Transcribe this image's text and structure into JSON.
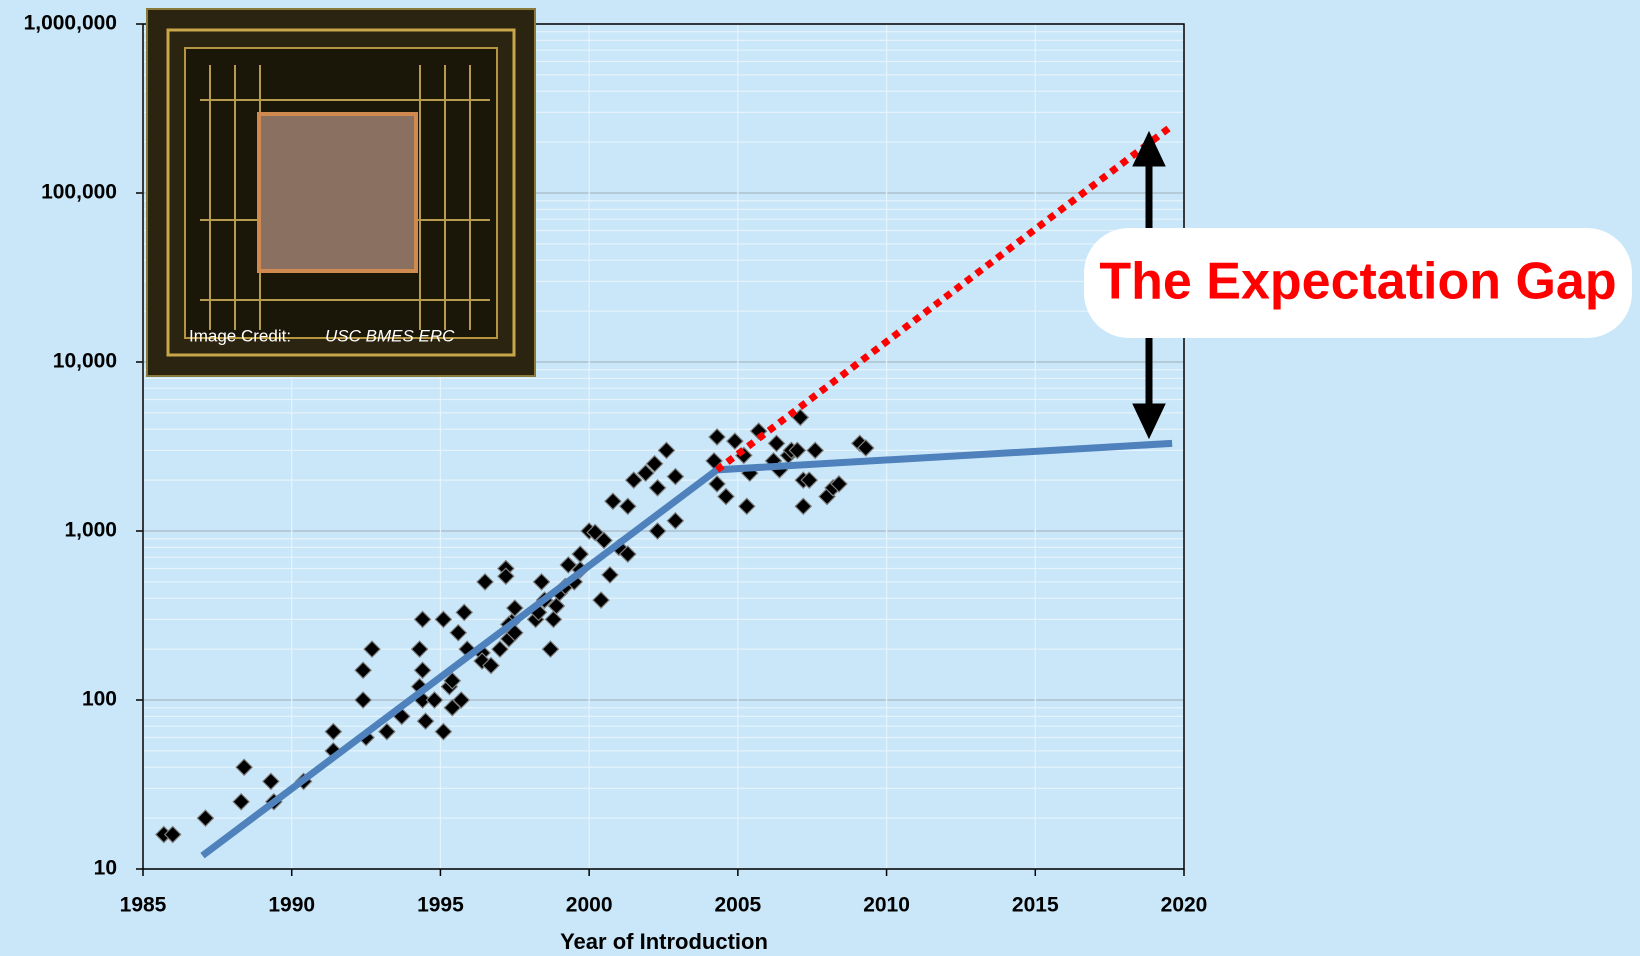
{
  "chart_data": {
    "type": "scatter",
    "x_label": "Year of Introduction",
    "annotation": "The Expectation Gap",
    "image_credit": {
      "label": "Image Credit:",
      "source": "USC BMES ERC"
    },
    "x": [
      1985.7,
      1986,
      1987.1,
      1988.3,
      1988.4,
      1989.3,
      1989.4,
      1990.4,
      1991.4,
      1991.4,
      1992.4,
      1992.4,
      1992.7,
      1992.5,
      1993.2,
      1993.7,
      1994.4,
      1994.3,
      1994.4,
      1994.4,
      1994.5,
      1994.3,
      1994.8,
      1995.1,
      1995.1,
      1995.3,
      1995.4,
      1995.4,
      1995.7,
      1995.6,
      1995.8,
      1995.9,
      1996.5,
      1996.4,
      1996.4,
      1996.7,
      1997,
      1997.2,
      1997.2,
      1997.3,
      1997.4,
      1997.5,
      1997.3,
      1997.5,
      1998.2,
      1998.3,
      1998.4,
      1998.5,
      1998.7,
      1998.8,
      1999,
      1998.9,
      1999.2,
      1999.3,
      1999.5,
      1999.7,
      1999.7,
      2000,
      2000.2,
      2000.4,
      2000.5,
      2000.7,
      2000.8,
      2001,
      2001.3,
      2001.3,
      2001.5,
      2001.9,
      2002.2,
      2002.3,
      2002.3,
      2002.6,
      2002.9,
      2002.9,
      2004.3,
      2004.2,
      2004.3,
      2004.6,
      2004.9,
      2005.2,
      2005.3,
      2005.4,
      2005.7,
      2006.2,
      2006.3,
      2006.4,
      2006.7,
      2006.8,
      2007.1,
      2007,
      2007.2,
      2007.2,
      2007.4,
      2007.6,
      2008,
      2008.2,
      2008.4,
      2009.1,
      2009.3
    ],
    "values": [
      16,
      16,
      20,
      25,
      40,
      33,
      25,
      33,
      65,
      50,
      150,
      100,
      200,
      60,
      65,
      80,
      300,
      200,
      150,
      100,
      75,
      120,
      100,
      300,
      65,
      120,
      130,
      90,
      100,
      250,
      330,
      200,
      500,
      190,
      170,
      160,
      200,
      600,
      540,
      230,
      290,
      350,
      280,
      250,
      300,
      330,
      500,
      390,
      200,
      300,
      430,
      360,
      470,
      630,
      500,
      730,
      590,
      1000,
      980,
      390,
      880,
      550,
      1500,
      800,
      730,
      1400,
      2000,
      2200,
      2500,
      1800,
      1000,
      3000,
      1150,
      2100,
      3600,
      2600,
      1900,
      1600,
      3400,
      2800,
      1400,
      2200,
      3900,
      2600,
      3300,
      2300,
      2800,
      3000,
      4700,
      3000,
      2000,
      1400,
      2000,
      3000,
      1600,
      1800,
      1900,
      3300,
      3100
    ],
    "color": "#000000",
    "trend_lines": [
      {
        "x": [
          1987,
          2004.3,
          2019.6
        ],
        "values": [
          12,
          2300,
          3300
        ],
        "color": "#4f81bd",
        "style": "solid"
      },
      {
        "x": [
          2004.3,
          2019.6
        ],
        "values": [
          2300,
          250000
        ],
        "color": "#ff0000",
        "style": "dotted"
      }
    ],
    "xlim": [
      1985,
      2020
    ],
    "xticks": [
      1985,
      1990,
      1995,
      2000,
      2005,
      2010,
      2015,
      2020
    ],
    "ylim": [
      10,
      1000000
    ],
    "log_y": true,
    "yticks": [
      {
        "value": 10,
        "label": "10"
      },
      100,
      {
        "value": 1000,
        "label": "1,000"
      },
      {
        "value": 10000,
        "label": "10,000"
      },
      {
        "value": 100000,
        "label": "100,000"
      },
      {
        "value": 1000000,
        "label": "1,000,000"
      }
    ],
    "yminorticks": [
      20,
      30,
      40,
      50,
      60,
      70,
      80,
      90,
      200,
      300,
      400,
      500,
      600,
      700,
      800,
      900,
      2000,
      3000,
      4000,
      5000,
      6000,
      7000,
      8000,
      9000,
      20000,
      30000,
      40000,
      50000,
      60000,
      70000,
      80000,
      90000,
      200000,
      300000,
      400000,
      500000,
      600000,
      700000,
      800000,
      900000
    ],
    "grid": true
  }
}
